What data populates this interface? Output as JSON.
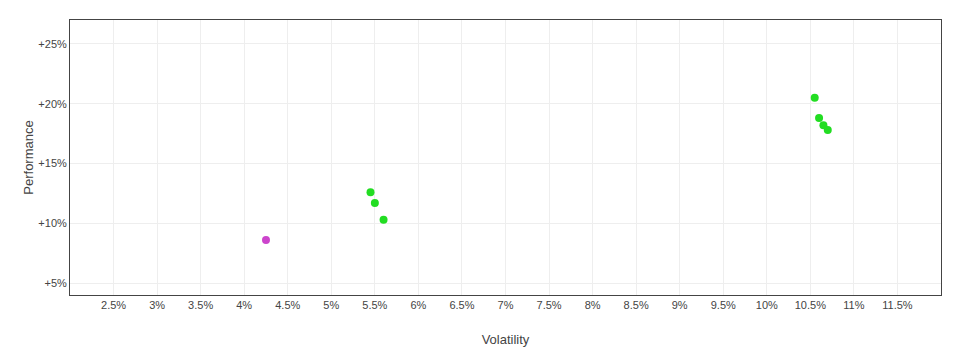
{
  "chart_data": {
    "type": "scatter",
    "xlabel": "Volatility",
    "ylabel": "Performance",
    "x": [
      0.0425,
      0.0545,
      0.055,
      0.056,
      0.1055,
      0.106,
      0.1065,
      0.107
    ],
    "values": [
      0.086,
      0.126,
      0.117,
      0.103,
      0.205,
      0.188,
      0.182,
      0.178
    ],
    "colors": [
      "#cc44cc",
      "#22dd22",
      "#22dd22",
      "#22dd22",
      "#22dd22",
      "#22dd22",
      "#22dd22",
      "#22dd22"
    ],
    "xlim": [
      0.02,
      0.12
    ],
    "ylim": [
      0.04,
      0.27
    ],
    "xticks": [
      {
        "value": 0.025,
        "label": "2.5%"
      },
      {
        "value": 0.03,
        "label": "3%"
      },
      {
        "value": 0.035,
        "label": "3.5%"
      },
      {
        "value": 0.04,
        "label": "4%"
      },
      {
        "value": 0.045,
        "label": "4.5%"
      },
      {
        "value": 0.05,
        "label": "5%"
      },
      {
        "value": 0.055,
        "label": "5.5%"
      },
      {
        "value": 0.06,
        "label": "6%"
      },
      {
        "value": 0.065,
        "label": "6.5%"
      },
      {
        "value": 0.07,
        "label": "7%"
      },
      {
        "value": 0.075,
        "label": "7.5%"
      },
      {
        "value": 0.08,
        "label": "8%"
      },
      {
        "value": 0.085,
        "label": "8.5%"
      },
      {
        "value": 0.09,
        "label": "9%"
      },
      {
        "value": 0.095,
        "label": "9.5%"
      },
      {
        "value": 0.1,
        "label": "10%"
      },
      {
        "value": 0.105,
        "label": "10.5%"
      },
      {
        "value": 0.11,
        "label": "11%"
      },
      {
        "value": 0.115,
        "label": "11.5%"
      }
    ],
    "yticks": [
      {
        "value": 0.05,
        "label": "+5%"
      },
      {
        "value": 0.1,
        "label": "+10%"
      },
      {
        "value": 0.15,
        "label": "+15%"
      },
      {
        "value": 0.2,
        "label": "+20%"
      },
      {
        "value": 0.25,
        "label": "+25%"
      }
    ],
    "grid": true
  }
}
